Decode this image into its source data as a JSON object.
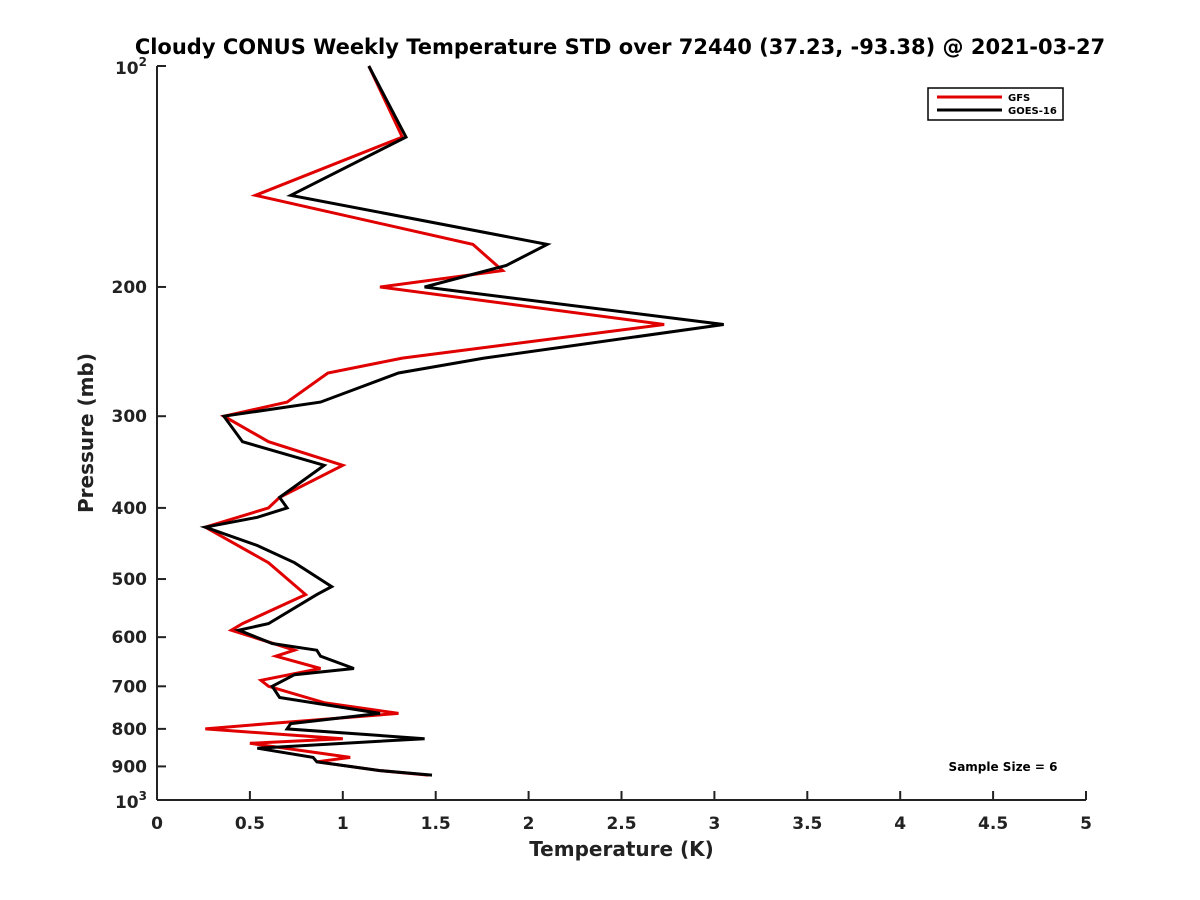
{
  "chart_data": {
    "type": "line",
    "title": "Cloudy CONUS Weekly Temperature STD over 72440 (37.23, -93.38) @ 2021-03-27",
    "xlabel": "Temperature (K)",
    "ylabel": "Pressure (mb)",
    "xlim": [
      0,
      5
    ],
    "ylim": [
      1000,
      100
    ],
    "yscale": "log",
    "y_reversed": true,
    "grid": false,
    "legend_position": "top-right",
    "x_ticks": [
      "0",
      "0.5",
      "1",
      "1.5",
      "2",
      "2.5",
      "3",
      "3.5",
      "4",
      "4.5",
      "5"
    ],
    "y_ticks": [
      {
        "value": 100,
        "base": "10",
        "exp": "2"
      },
      {
        "value": 200,
        "label": "200"
      },
      {
        "value": 300,
        "label": "300"
      },
      {
        "value": 400,
        "label": "400"
      },
      {
        "value": 500,
        "label": "500"
      },
      {
        "value": 600,
        "label": "600"
      },
      {
        "value": 700,
        "label": "700"
      },
      {
        "value": 800,
        "label": "800"
      },
      {
        "value": 900,
        "label": "900"
      },
      {
        "value": 1000,
        "base": "10",
        "exp": "3"
      }
    ],
    "annotation": "Sample Size = 6",
    "series": [
      {
        "name": "GFS",
        "color": "#e00000",
        "points": [
          [
            1.14,
            100
          ],
          [
            1.32,
            125
          ],
          [
            0.53,
            150
          ],
          [
            1.7,
            175
          ],
          [
            1.86,
            190
          ],
          [
            1.2,
            200
          ],
          [
            2.73,
            225
          ],
          [
            1.32,
            250
          ],
          [
            0.92,
            262
          ],
          [
            0.7,
            287
          ],
          [
            0.36,
            300
          ],
          [
            0.6,
            325
          ],
          [
            1.0,
            350
          ],
          [
            0.66,
            387
          ],
          [
            0.6,
            400
          ],
          [
            0.26,
            425
          ],
          [
            0.6,
            475
          ],
          [
            0.8,
            525
          ],
          [
            0.46,
            575
          ],
          [
            0.4,
            587
          ],
          [
            0.74,
            625
          ],
          [
            0.64,
            637
          ],
          [
            0.88,
            662
          ],
          [
            0.56,
            687
          ],
          [
            0.6,
            700
          ],
          [
            0.9,
            737
          ],
          [
            1.3,
            762
          ],
          [
            0.6,
            787
          ],
          [
            0.26,
            800
          ],
          [
            1.0,
            825
          ],
          [
            0.5,
            837
          ],
          [
            1.04,
            875
          ],
          [
            0.86,
            887
          ],
          [
            1.2,
            912
          ],
          [
            1.46,
            925
          ]
        ]
      },
      {
        "name": "GOES-16",
        "color": "#000000",
        "points": [
          [
            1.14,
            100
          ],
          [
            1.34,
            125
          ],
          [
            0.72,
            150
          ],
          [
            2.1,
            175
          ],
          [
            1.88,
            187
          ],
          [
            1.44,
            200
          ],
          [
            3.05,
            225
          ],
          [
            1.76,
            250
          ],
          [
            1.3,
            262
          ],
          [
            0.88,
            287
          ],
          [
            0.36,
            300
          ],
          [
            0.46,
            325
          ],
          [
            0.9,
            350
          ],
          [
            0.66,
            387
          ],
          [
            0.7,
            400
          ],
          [
            0.54,
            412
          ],
          [
            0.26,
            425
          ],
          [
            0.54,
            450
          ],
          [
            0.74,
            475
          ],
          [
            0.94,
            512
          ],
          [
            0.86,
            525
          ],
          [
            0.6,
            575
          ],
          [
            0.44,
            587
          ],
          [
            0.62,
            612
          ],
          [
            0.86,
            625
          ],
          [
            0.88,
            637
          ],
          [
            1.06,
            662
          ],
          [
            0.74,
            675
          ],
          [
            0.62,
            700
          ],
          [
            0.66,
            725
          ],
          [
            1.2,
            762
          ],
          [
            0.72,
            787
          ],
          [
            0.7,
            800
          ],
          [
            1.44,
            825
          ],
          [
            0.54,
            850
          ],
          [
            0.84,
            875
          ],
          [
            0.86,
            887
          ],
          [
            1.2,
            912
          ],
          [
            1.48,
            925
          ]
        ]
      }
    ]
  }
}
